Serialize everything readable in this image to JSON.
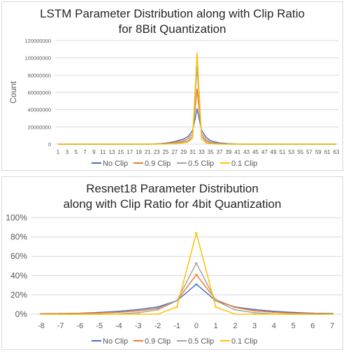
{
  "chart_data": [
    {
      "type": "line",
      "title_line1": "LSTM Parameter Distribution along with Clip Ratio",
      "title_line2": "for 8Bit Quantization",
      "xlabel": "",
      "ylabel": "Count",
      "ylim": [
        0,
        120000000
      ],
      "y_ticks": [
        "0",
        "20000000",
        "40000000",
        "60000000",
        "80000000",
        "100000000",
        "120000000"
      ],
      "y_tick_values": [
        0,
        20000000,
        40000000,
        60000000,
        80000000,
        100000000,
        120000000
      ],
      "x_tick_labels": [
        "1",
        "3",
        "5",
        "7",
        "9",
        "11",
        "13",
        "15",
        "17",
        "19",
        "21",
        "23",
        "25",
        "27",
        "29",
        "31",
        "33",
        "35",
        "37",
        "39",
        "41",
        "43",
        "45",
        "47",
        "49",
        "51",
        "53",
        "55",
        "57",
        "59",
        "61",
        "63"
      ],
      "x": [
        1,
        2,
        3,
        4,
        5,
        6,
        7,
        8,
        9,
        10,
        11,
        12,
        13,
        14,
        15,
        16,
        17,
        18,
        19,
        20,
        21,
        22,
        23,
        24,
        25,
        26,
        27,
        28,
        29,
        30,
        31,
        32,
        33,
        34,
        35,
        36,
        37,
        38,
        39,
        40,
        41,
        42,
        43,
        44,
        45,
        46,
        47,
        48,
        49,
        50,
        51,
        52,
        53,
        54,
        55,
        56,
        57,
        58,
        59,
        60,
        61,
        62,
        63
      ],
      "legend_position": "bottom",
      "grid": "horizontal",
      "series": [
        {
          "name": "No Clip",
          "color": "#4472c4",
          "values": [
            0,
            0,
            0,
            0,
            0,
            0,
            0,
            0,
            0,
            0,
            0,
            0,
            0,
            0,
            0,
            0,
            0,
            0,
            0,
            50000,
            100000,
            200000,
            400000,
            700000,
            1200000,
            2000000,
            3000000,
            4500000,
            6000000,
            9000000,
            16000000,
            41000000,
            16000000,
            8000000,
            4000000,
            2500000,
            1500000,
            1000000,
            600000,
            400000,
            200000,
            100000,
            50000,
            0,
            0,
            0,
            0,
            0,
            0,
            0,
            0,
            0,
            0,
            0,
            0,
            0,
            0,
            0,
            0,
            0,
            0,
            0,
            0
          ]
        },
        {
          "name": "0.9 Clip",
          "color": "#ed7d31",
          "values": [
            0,
            0,
            0,
            0,
            0,
            0,
            0,
            0,
            0,
            0,
            0,
            0,
            0,
            0,
            0,
            0,
            0,
            0,
            0,
            20000,
            50000,
            100000,
            200000,
            400000,
            700000,
            1200000,
            1800000,
            2800000,
            4000000,
            6500000,
            12000000,
            64000000,
            12000000,
            5000000,
            2000000,
            1200000,
            700000,
            400000,
            200000,
            100000,
            50000,
            0,
            0,
            0,
            0,
            0,
            0,
            0,
            0,
            0,
            0,
            0,
            0,
            0,
            0,
            0,
            0,
            0,
            0,
            0,
            0,
            0,
            0
          ]
        },
        {
          "name": "0.5 Clip",
          "color": "#a5a5a5",
          "values": [
            0,
            0,
            0,
            0,
            0,
            0,
            0,
            0,
            0,
            0,
            0,
            0,
            0,
            0,
            0,
            0,
            0,
            0,
            0,
            0,
            20000,
            50000,
            100000,
            200000,
            400000,
            700000,
            1000000,
            1600000,
            2500000,
            4000000,
            9000000,
            90000000,
            9000000,
            3000000,
            1200000,
            600000,
            300000,
            100000,
            50000,
            0,
            0,
            0,
            0,
            0,
            0,
            0,
            0,
            0,
            0,
            0,
            0,
            0,
            0,
            0,
            0,
            0,
            0,
            0,
            0,
            0,
            0,
            0,
            0
          ]
        },
        {
          "name": "0.1 Clip",
          "color": "#ffc000",
          "values": [
            0,
            0,
            0,
            0,
            0,
            0,
            0,
            0,
            0,
            0,
            0,
            0,
            0,
            0,
            0,
            0,
            0,
            0,
            0,
            0,
            0,
            20000,
            50000,
            100000,
            200000,
            400000,
            600000,
            900000,
            1500000,
            2500000,
            7000000,
            106000000,
            6000000,
            1500000,
            500000,
            200000,
            100000,
            0,
            0,
            0,
            0,
            0,
            0,
            0,
            0,
            0,
            0,
            0,
            0,
            0,
            0,
            0,
            0,
            0,
            0,
            0,
            0,
            0,
            0,
            0,
            0,
            0,
            0
          ]
        }
      ]
    },
    {
      "type": "line",
      "title_line1": "Resnet18 Parameter Distribution",
      "title_line2": "along with Clip Ratio for 4bit Quantization",
      "xlabel": "",
      "ylabel": "",
      "ylim": [
        0,
        100
      ],
      "y_ticks": [
        "0%",
        "20%",
        "40%",
        "60%",
        "80%",
        "100%"
      ],
      "y_tick_values": [
        0,
        20,
        40,
        60,
        80,
        100
      ],
      "categories": [
        "-8",
        "-7",
        "-6",
        "-5",
        "-4",
        "-3",
        "-2",
        "-1",
        "0",
        "1",
        "2",
        "3",
        "4",
        "5",
        "6",
        "7"
      ],
      "legend_position": "bottom",
      "grid": "horizontal",
      "series": [
        {
          "name": "No Clip",
          "color": "#4472c4",
          "values": [
            0.5,
            0.7,
            1.0,
            1.8,
            3.0,
            4.8,
            7.5,
            14.0,
            31.0,
            14.0,
            7.5,
            4.8,
            3.0,
            1.8,
            1.0,
            0.7
          ]
        },
        {
          "name": "0.9 Clip",
          "color": "#ed7d31",
          "values": [
            0.3,
            0.5,
            0.8,
            1.2,
            2.0,
            3.5,
            6.0,
            14.0,
            41.0,
            15.0,
            7.0,
            3.5,
            2.0,
            1.0,
            0.5,
            0.3
          ]
        },
        {
          "name": "0.5 Clip",
          "color": "#a5a5a5",
          "values": [
            0,
            0,
            0,
            0.1,
            0.3,
            1.5,
            4.5,
            14.0,
            53.0,
            14.0,
            4.5,
            1.5,
            0.3,
            0.1,
            0,
            0
          ]
        },
        {
          "name": "0.1 Clip",
          "color": "#ffc000",
          "values": [
            0,
            0,
            0,
            0,
            0,
            0,
            0.1,
            7.5,
            84.0,
            7.5,
            0.1,
            0,
            0,
            0,
            0,
            0
          ]
        }
      ]
    }
  ]
}
